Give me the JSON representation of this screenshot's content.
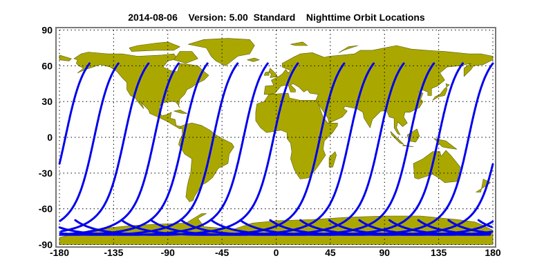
{
  "title": "2014-08-06    Version: 5.00  Standard    Nighttime Orbit Locations",
  "colors": {
    "land": "#aaa800",
    "coast": "#5a5a00",
    "track": "#0000ee",
    "frame": "#777777",
    "grid": "#000000",
    "ocean": "#ffffff"
  },
  "chart_data": {
    "type": "map",
    "projection": "equirectangular",
    "xlim": [
      -180,
      180
    ],
    "ylim": [
      -90,
      90
    ],
    "xticks": [
      "-180",
      "-135",
      "-90",
      "-45",
      "0",
      "45",
      "90",
      "135",
      "180"
    ],
    "yticks": [
      "90",
      "60",
      "30",
      "0",
      "-30",
      "-60",
      "-90"
    ],
    "grid": "dotted",
    "orbit_tracks": {
      "north_end_latitude": 62,
      "north_end_longitudes": [
        -155,
        -131,
        -106,
        -81,
        -57,
        -32,
        -7,
        18,
        56.5,
        81,
        106,
        131,
        155,
        180
      ]
    }
  }
}
